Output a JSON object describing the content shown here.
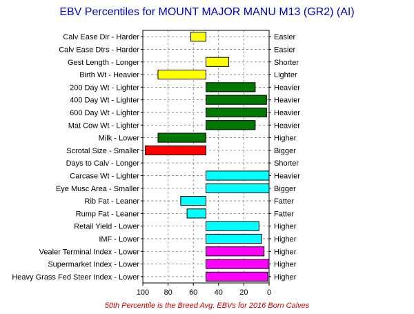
{
  "chart_data": {
    "type": "bar",
    "title": "EBV Percentiles for MOUNT MAJOR MANU M13 (GR2) (AI)",
    "footnote": "50th Percentile is the Breed Avg. EBVs for 2016 Born Calves",
    "xlim": [
      100,
      0
    ],
    "baseline": 50,
    "xticks": [
      "100",
      "80",
      "60",
      "40",
      "20",
      "0"
    ],
    "grid": true,
    "rows": [
      {
        "left": "Calv Ease Dir - Harder",
        "right": "Easier",
        "value": 62,
        "color": "#ffff00"
      },
      {
        "left": "Calv Ease Dtrs - Harder",
        "right": "Easier",
        "value": null,
        "color": ""
      },
      {
        "left": "Gest Length - Longer",
        "right": "Shorter",
        "value": 32,
        "color": "#ffff00"
      },
      {
        "left": "Birth Wt - Heavier",
        "right": "Lighter",
        "value": 88,
        "color": "#ffff00"
      },
      {
        "left": "200 Day Wt - Lighter",
        "right": "Heavier",
        "value": 11,
        "color": "#007700"
      },
      {
        "left": "400 Day Wt - Lighter",
        "right": "Heavier",
        "value": 2,
        "color": "#007700"
      },
      {
        "left": "600 Day Wt - Lighter",
        "right": "Heavier",
        "value": 2,
        "color": "#007700"
      },
      {
        "left": "Mat Cow Wt - Lighter",
        "right": "Heavier",
        "value": 11,
        "color": "#007700"
      },
      {
        "left": "Milk - Lower",
        "right": "Higher",
        "value": 88,
        "color": "#007700"
      },
      {
        "left": "Scrotal Size - Smaller",
        "right": "Bigger",
        "value": 98,
        "color": "#ff0000"
      },
      {
        "left": "Days to Calv - Longer",
        "right": "Shorter",
        "value": null,
        "color": ""
      },
      {
        "left": "Carcase Wt - Lighter",
        "right": "Heavier",
        "value": 0,
        "color": "#00ffff"
      },
      {
        "left": "Eye Musc Area - Smaller",
        "right": "Bigger",
        "value": 0,
        "color": "#00ffff"
      },
      {
        "left": "Rib Fat - Leaner",
        "right": "Fatter",
        "value": 70,
        "color": "#00ffff"
      },
      {
        "left": "Rump Fat - Leaner",
        "right": "Fatter",
        "value": 65,
        "color": "#00ffff"
      },
      {
        "left": "Retail Yield - Lower",
        "right": "Higher",
        "value": 8,
        "color": "#00ffff"
      },
      {
        "left": "IMF - Lower",
        "right": "Higher",
        "value": 6,
        "color": "#00ffff"
      },
      {
        "left": "Vealer Terminal Index - Lower",
        "right": "Higher",
        "value": 4,
        "color": "#ff00ff"
      },
      {
        "left": "Supermarket Index - Lower",
        "right": "Higher",
        "value": 0,
        "color": "#ff00ff"
      },
      {
        "left": "Heavy Grass Fed Steer Index - Lower",
        "right": "Higher",
        "value": 1,
        "color": "#ff00ff"
      }
    ]
  }
}
